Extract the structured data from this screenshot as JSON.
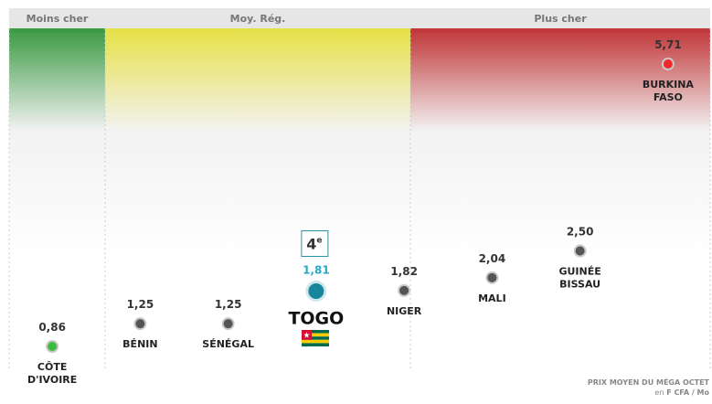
{
  "chart_data": {
    "type": "dot",
    "zones": [
      {
        "label": "Moins cher",
        "color": "#3f9a47"
      },
      {
        "label": "Moy. Rég.",
        "color": "#e6e04a"
      },
      {
        "label": "Plus cher",
        "color": "#c0393b"
      }
    ],
    "categories": [
      "CÔTE D'IVOIRE",
      "BÉNIN",
      "SÉNÉGAL",
      "TOGO",
      "NIGER",
      "MALI",
      "GUINÉE BISSAU",
      "BURKINA FASO"
    ],
    "values": [
      0.86,
      1.25,
      1.25,
      1.81,
      1.82,
      2.04,
      2.5,
      5.71
    ],
    "value_labels": [
      "0,86",
      "1,25",
      "1,25",
      "1,81",
      "1,82",
      "2,04",
      "2,50",
      "5,71"
    ],
    "colors": [
      "#3dbb3f",
      "#555555",
      "#555555",
      "#17869a",
      "#555555",
      "#555555",
      "#555555",
      "#ee2a2a"
    ],
    "highlight": "TOGO",
    "rank": "4",
    "rank_suffix": "e",
    "note": "PRIX MOYEN DU MÉGA OCTET",
    "unit_prefix": "en",
    "unit": "F CFA / Mo"
  }
}
